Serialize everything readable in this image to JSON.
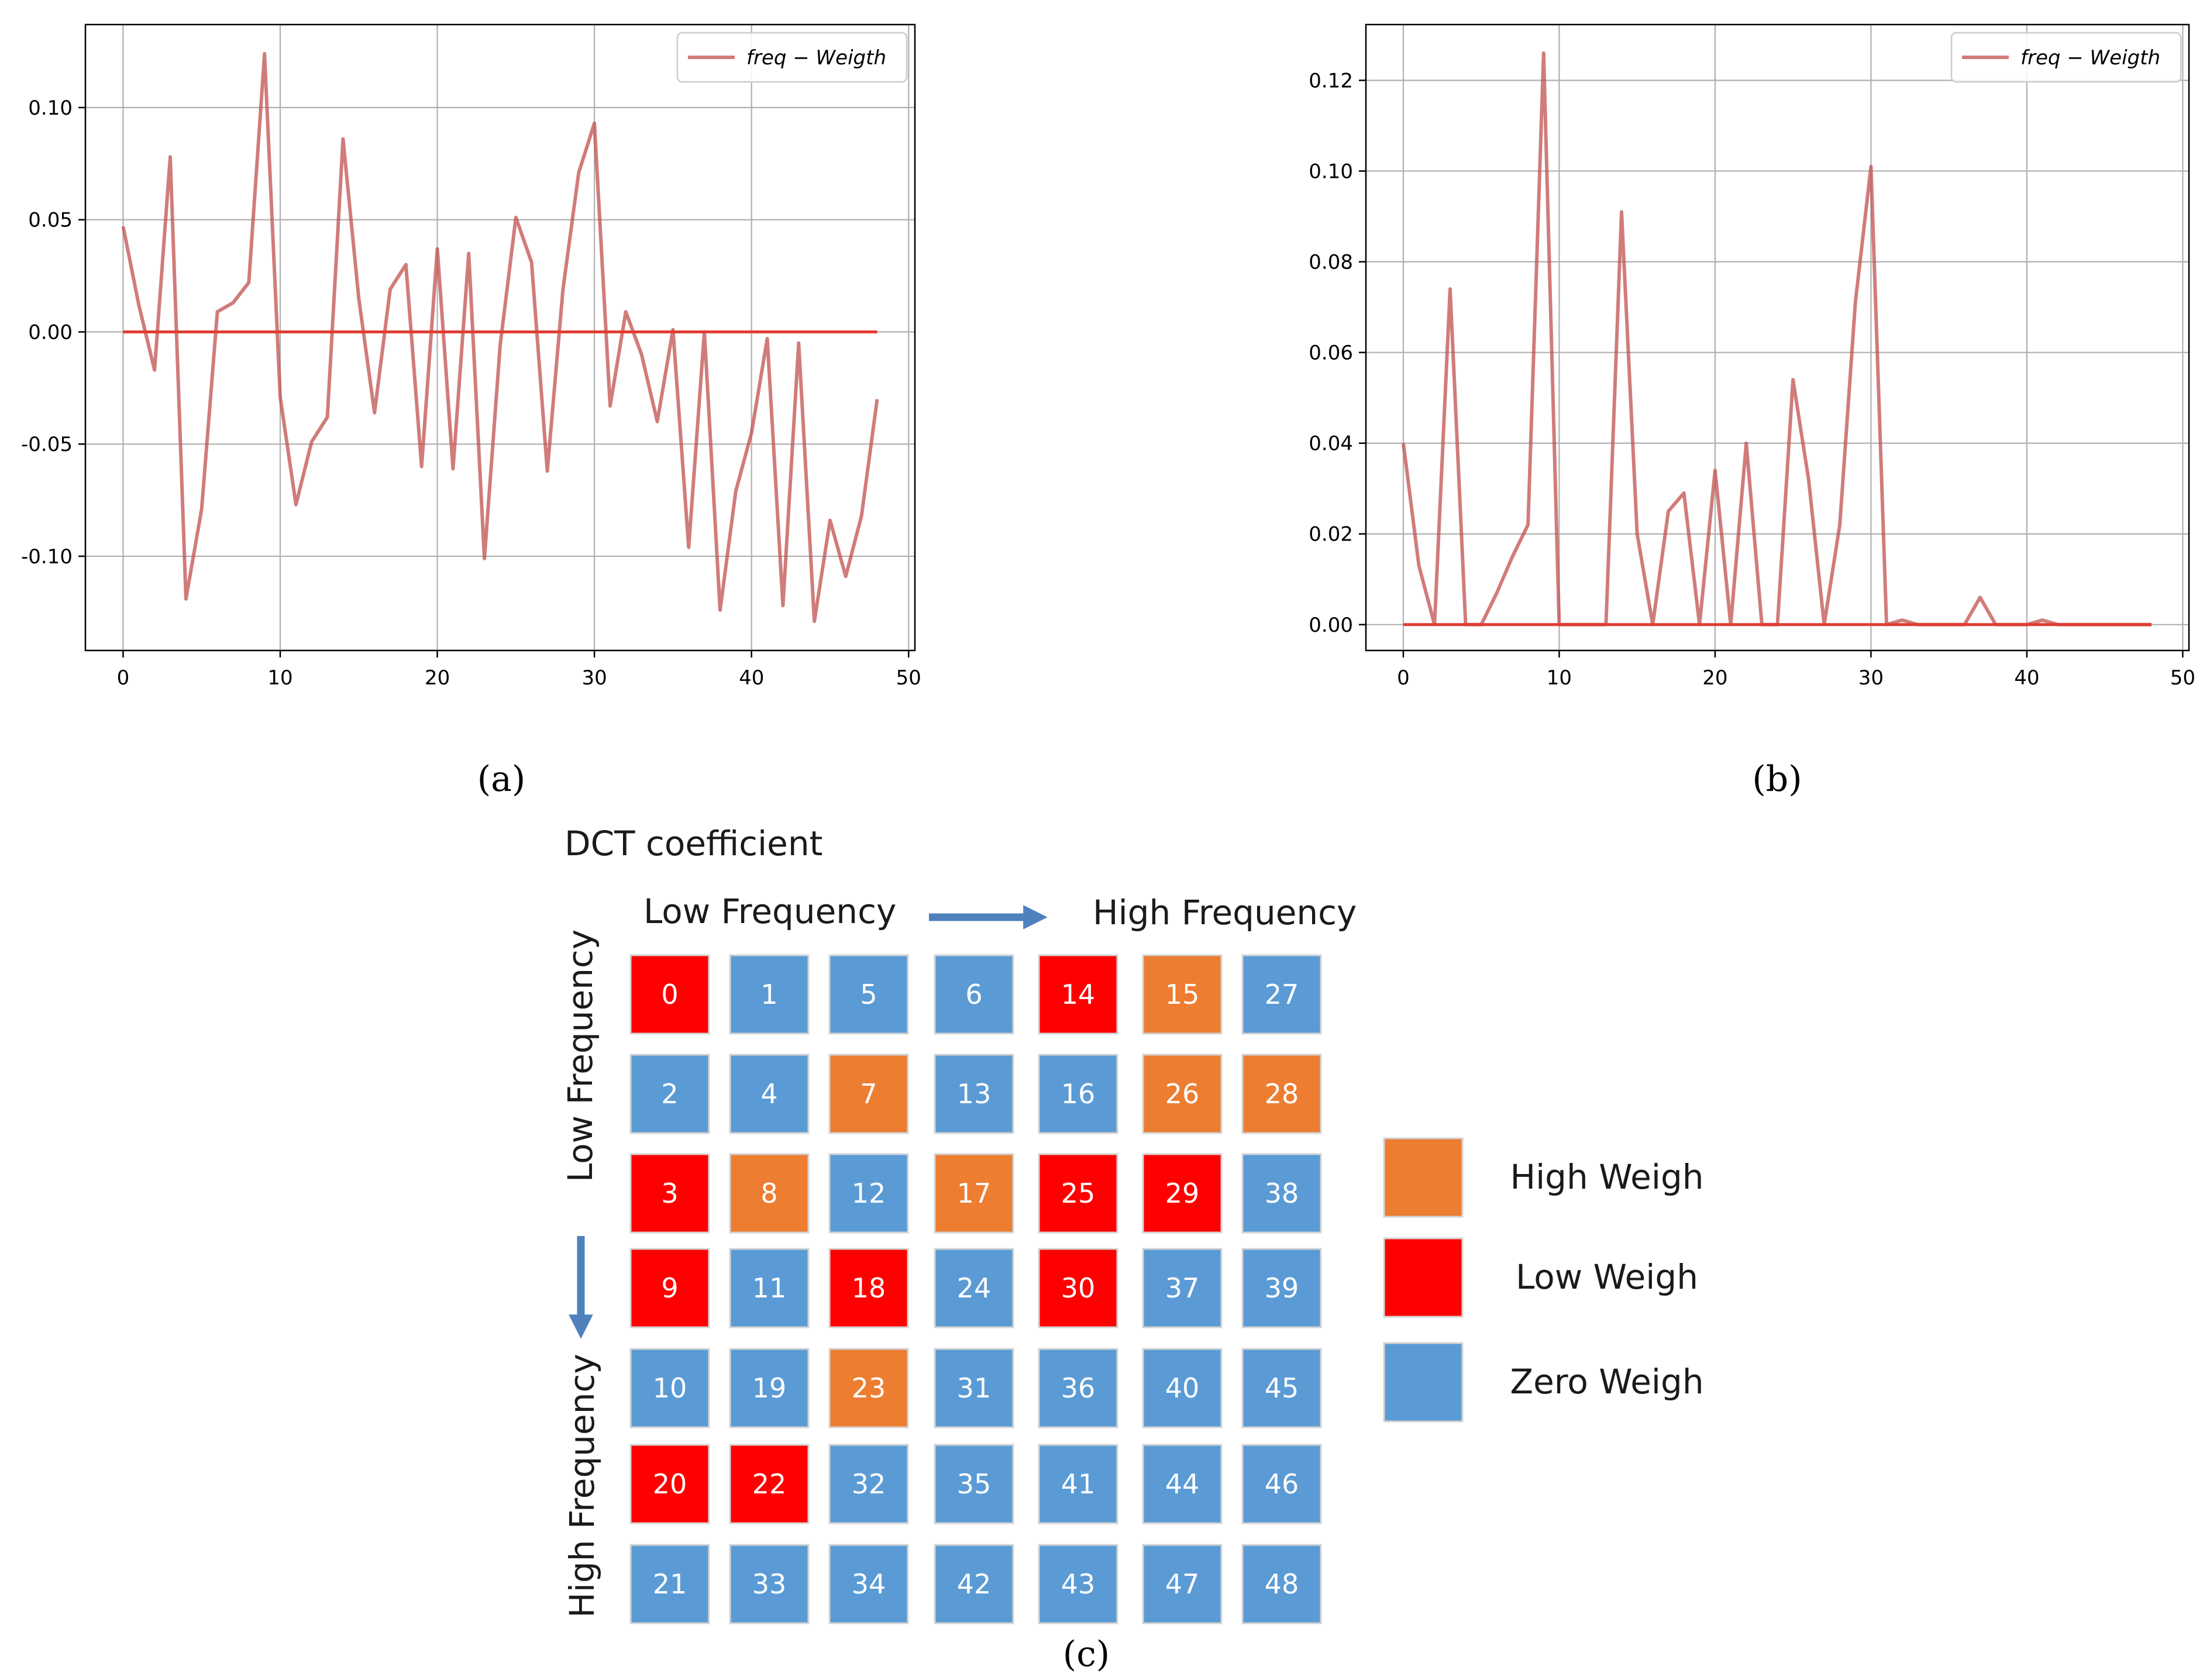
{
  "panels": {
    "a": "(a)",
    "b": "(b)",
    "c": "(c)"
  },
  "chart_data": [
    {
      "id": "a",
      "type": "line",
      "title": "",
      "xlabel": "",
      "ylabel": "",
      "xlim": [
        -2.4,
        50.4
      ],
      "ylim": [
        -0.142,
        0.137
      ],
      "xticks": [
        0,
        10,
        20,
        30,
        40,
        50
      ],
      "yticks": [
        -0.1,
        -0.05,
        0.0,
        0.05,
        0.1
      ],
      "ytick_labels": [
        "-0.10",
        "-0.05",
        "0.00",
        "0.05",
        "0.10"
      ],
      "grid": true,
      "legend": {
        "label_italic": "freq",
        "label_rest": " − Weigth",
        "placement": "top-right"
      },
      "series": [
        {
          "name": "freq − Weigth",
          "color": "#c0504d",
          "x": [
            0,
            1,
            2,
            3,
            4,
            5,
            6,
            7,
            8,
            9,
            10,
            11,
            12,
            13,
            14,
            15,
            16,
            17,
            18,
            19,
            20,
            21,
            22,
            23,
            24,
            25,
            26,
            27,
            28,
            29,
            30,
            31,
            32,
            33,
            34,
            35,
            36,
            37,
            38,
            39,
            40,
            41,
            42,
            43,
            44,
            45,
            46,
            47,
            48
          ],
          "values": [
            0.047,
            0.012,
            -0.017,
            0.078,
            -0.119,
            -0.079,
            0.009,
            0.013,
            0.022,
            0.124,
            -0.029,
            -0.077,
            -0.049,
            -0.038,
            0.086,
            0.015,
            -0.036,
            0.019,
            0.03,
            -0.06,
            0.037,
            -0.061,
            0.035,
            -0.101,
            -0.006,
            0.051,
            0.031,
            -0.062,
            0.019,
            0.071,
            0.093,
            -0.033,
            0.009,
            -0.01,
            -0.04,
            0.001,
            -0.096,
            0.0,
            -0.124,
            -0.071,
            -0.045,
            -0.003,
            -0.122,
            -0.005,
            -0.129,
            -0.084,
            -0.109,
            -0.082,
            -0.03
          ]
        },
        {
          "name": "zero",
          "color": "#e03c31",
          "x": [
            0,
            48
          ],
          "values": [
            0.0,
            0.0
          ]
        }
      ]
    },
    {
      "id": "b",
      "type": "line",
      "title": "",
      "xlabel": "",
      "ylabel": "",
      "xlim": [
        -2.4,
        50.4
      ],
      "ylim": [
        -0.0057,
        0.1323
      ],
      "xticks": [
        0,
        10,
        20,
        30,
        40,
        50
      ],
      "yticks": [
        0.0,
        0.02,
        0.04,
        0.06,
        0.08,
        0.1,
        0.12
      ],
      "ytick_labels": [
        "0.00",
        "0.02",
        "0.04",
        "0.06",
        "0.08",
        "0.10",
        "0.12"
      ],
      "grid": true,
      "legend": {
        "label_italic": "freq",
        "label_rest": " − Weigth",
        "placement": "top-right"
      },
      "series": [
        {
          "name": "freq − Weigth",
          "color": "#c0504d",
          "x": [
            0,
            1,
            2,
            3,
            4,
            5,
            6,
            7,
            8,
            9,
            10,
            11,
            12,
            13,
            14,
            15,
            16,
            17,
            18,
            19,
            20,
            21,
            22,
            23,
            24,
            25,
            26,
            27,
            28,
            29,
            30,
            31,
            32,
            33,
            34,
            35,
            36,
            37,
            38,
            39,
            40,
            41,
            42,
            43,
            44,
            45,
            46,
            47,
            48
          ],
          "values": [
            0.04,
            0.013,
            0.0,
            0.074,
            0.0,
            0.0,
            0.007,
            0.015,
            0.022,
            0.126,
            0.0,
            0.0,
            0.0,
            0.0,
            0.091,
            0.02,
            0.0,
            0.025,
            0.029,
            0.0,
            0.034,
            0.0,
            0.04,
            0.0,
            0.0,
            0.054,
            0.032,
            0.0,
            0.022,
            0.071,
            0.101,
            0.0,
            0.001,
            0.0,
            0.0,
            0.0,
            0.0,
            0.006,
            0.0,
            0.0,
            0.0,
            0.001,
            0.0,
            0.0,
            0.0,
            0.0,
            0.0,
            0.0,
            0.0
          ]
        },
        {
          "name": "zero",
          "color": "#e03c31",
          "x": [
            0,
            48
          ],
          "values": [
            0.0,
            0.0
          ]
        }
      ]
    }
  ],
  "dct": {
    "title": "DCT coefficient",
    "top_low": "Low Frequency",
    "top_high": "High Frequency",
    "side_low": "Low Frequency",
    "side_high": "High Frequency",
    "colors": {
      "high": "#ed7d31",
      "low": "#ff0000",
      "zero": "#5b9bd5"
    },
    "grid": [
      [
        {
          "n": "0",
          "w": "low"
        },
        {
          "n": "1",
          "w": "zero"
        },
        {
          "n": "5",
          "w": "zero"
        },
        {
          "n": "6",
          "w": "zero"
        },
        {
          "n": "14",
          "w": "low"
        },
        {
          "n": "15",
          "w": "high"
        },
        {
          "n": "27",
          "w": "zero"
        }
      ],
      [
        {
          "n": "2",
          "w": "zero"
        },
        {
          "n": "4",
          "w": "zero"
        },
        {
          "n": "7",
          "w": "high"
        },
        {
          "n": "13",
          "w": "zero"
        },
        {
          "n": "16",
          "w": "zero"
        },
        {
          "n": "26",
          "w": "high"
        },
        {
          "n": "28",
          "w": "high"
        }
      ],
      [
        {
          "n": "3",
          "w": "low"
        },
        {
          "n": "8",
          "w": "high"
        },
        {
          "n": "12",
          "w": "zero"
        },
        {
          "n": "17",
          "w": "high"
        },
        {
          "n": "25",
          "w": "low"
        },
        {
          "n": "29",
          "w": "low"
        },
        {
          "n": "38",
          "w": "zero"
        }
      ],
      [
        {
          "n": "9",
          "w": "low"
        },
        {
          "n": "11",
          "w": "zero"
        },
        {
          "n": "18",
          "w": "low"
        },
        {
          "n": "24",
          "w": "zero"
        },
        {
          "n": "30",
          "w": "low"
        },
        {
          "n": "37",
          "w": "zero"
        },
        {
          "n": "39",
          "w": "zero"
        }
      ],
      [
        {
          "n": "10",
          "w": "zero"
        },
        {
          "n": "19",
          "w": "zero"
        },
        {
          "n": "23",
          "w": "high"
        },
        {
          "n": "31",
          "w": "zero"
        },
        {
          "n": "36",
          "w": "zero"
        },
        {
          "n": "40",
          "w": "zero"
        },
        {
          "n": "45",
          "w": "zero"
        }
      ],
      [
        {
          "n": "20",
          "w": "low"
        },
        {
          "n": "22",
          "w": "low"
        },
        {
          "n": "32",
          "w": "zero"
        },
        {
          "n": "35",
          "w": "zero"
        },
        {
          "n": "41",
          "w": "zero"
        },
        {
          "n": "44",
          "w": "zero"
        },
        {
          "n": "46",
          "w": "zero"
        }
      ],
      [
        {
          "n": "21",
          "w": "zero"
        },
        {
          "n": "33",
          "w": "zero"
        },
        {
          "n": "34",
          "w": "zero"
        },
        {
          "n": "42",
          "w": "zero"
        },
        {
          "n": "43",
          "w": "zero"
        },
        {
          "n": "47",
          "w": "zero"
        },
        {
          "n": "48",
          "w": "zero"
        }
      ]
    ],
    "legend": [
      {
        "w": "high",
        "label": "High Weigh"
      },
      {
        "w": "low",
        "label": "Low Weigh"
      },
      {
        "w": "zero",
        "label": "Zero Weigh"
      }
    ]
  }
}
